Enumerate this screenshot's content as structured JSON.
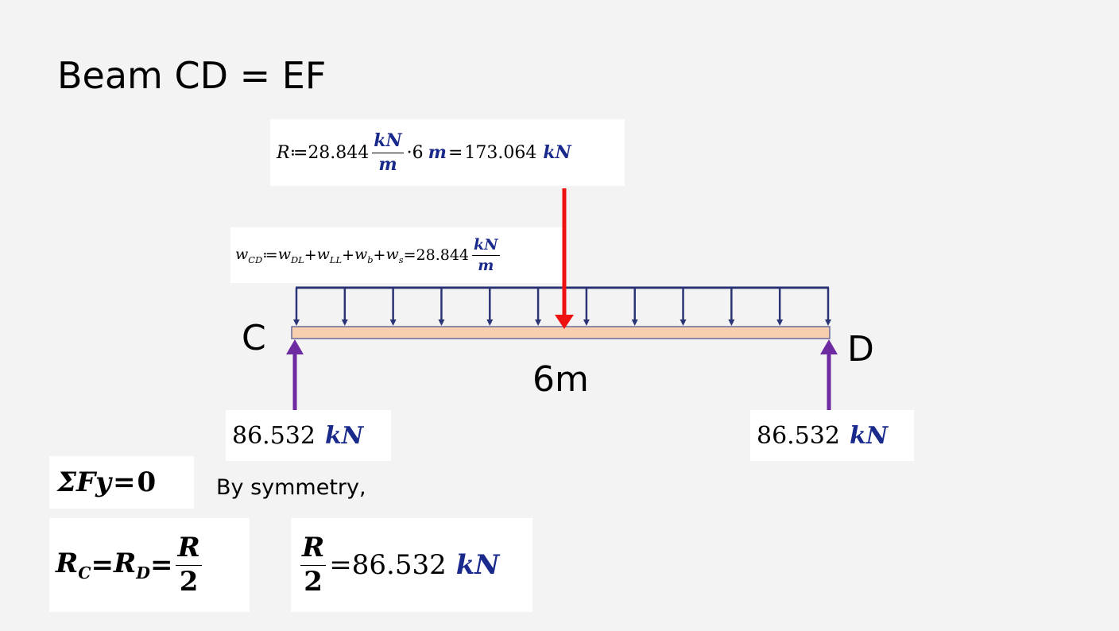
{
  "title": "Beam CD = EF",
  "resultant_eq": {
    "lhs": "R",
    "op": "≔",
    "value": "28.844",
    "frac_num": "kN",
    "frac_den": "m",
    "times": "·6",
    "length_unit": "m",
    "eq": "=",
    "result": "173.064",
    "result_unit": "kN"
  },
  "load_eq": {
    "lhs_sym": "w",
    "lhs_sub": "CD",
    "op": "≔",
    "t1_sym": "w",
    "t1_sub": "DL",
    "t2_sym": "w",
    "t2_sub": "LL",
    "t3_sym": "w",
    "t3_sub": "b",
    "t4_sym": "w",
    "t4_sub": "s",
    "plus": "+",
    "eq": "=",
    "value": "28.844",
    "frac_num": "kN",
    "frac_den": "m"
  },
  "labels": {
    "left_point": "C",
    "right_point": "D",
    "span": "6m"
  },
  "reactions": {
    "left_value": "86.532",
    "left_unit": "kN",
    "right_value": "86.532",
    "right_unit": "kN"
  },
  "sum_eq": {
    "text": "ΣFy",
    "eq": "=",
    "zero": "0"
  },
  "symmetry_note": "By symmetry,",
  "rc_eq": {
    "r1": "R",
    "r1_sub": "C",
    "eq1": "=",
    "r2": "R",
    "r2_sub": "D",
    "eq2": "=",
    "frac_num": "R",
    "frac_den": "2"
  },
  "half_eq": {
    "frac_num": "R",
    "frac_den": "2",
    "eq": "=",
    "value": "86.532",
    "unit": "kN"
  },
  "colors": {
    "beam_fill": "#f8cfae",
    "udl_arrow": "#2b3576",
    "resultant_arrow": "#ee1111",
    "reaction_arrow": "#6e2aa0"
  },
  "udl_arrow_count": 12
}
